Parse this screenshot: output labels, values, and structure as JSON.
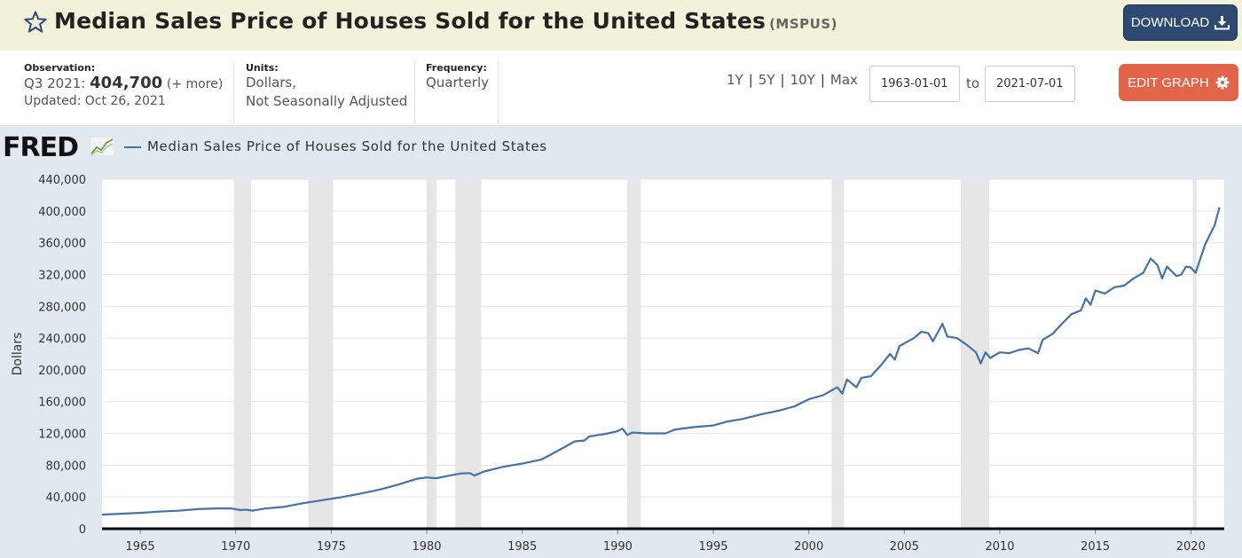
{
  "header": {
    "title": "Median Sales Price of Houses Sold for the United States",
    "code": "(MSPUS)",
    "download_label": "DOWNLOAD"
  },
  "meta": {
    "observation_label": "Observation:",
    "observation_period": "Q3 2021:",
    "observation_value": "404,700",
    "observation_more": "(+ more)",
    "updated": "Updated: Oct 26, 2021",
    "units_label": "Units:",
    "units_line1": "Dollars,",
    "units_line2": "Not Seasonally Adjusted",
    "frequency_label": "Frequency:",
    "frequency_value": "Quarterly"
  },
  "controls": {
    "ranges": [
      "1Y",
      "5Y",
      "10Y",
      "Max"
    ],
    "start_date": "1963-01-01",
    "to_label": "to",
    "end_date": "2021-07-01",
    "edit_label": "EDIT GRAPH"
  },
  "colors": {
    "series": "#4572a7",
    "recession": "#e6e6e6",
    "edit_button": "#e2654a",
    "download_button": "#2f4a72"
  },
  "logo": "FRED",
  "chart_data": {
    "type": "line",
    "title": "Median Sales Price of Houses Sold for the United States",
    "ylabel": "Dollars",
    "xlabel": "",
    "legend": [
      "Median Sales Price of Houses Sold for the United States"
    ],
    "ylim": [
      0,
      440000
    ],
    "xlim": [
      1963.0,
      2021.75
    ],
    "yticks": [
      0,
      40000,
      80000,
      120000,
      160000,
      200000,
      240000,
      280000,
      320000,
      360000,
      400000,
      440000
    ],
    "ytick_labels": [
      "0",
      "40,000",
      "80,000",
      "120,000",
      "160,000",
      "200,000",
      "240,000",
      "280,000",
      "320,000",
      "360,000",
      "400,000",
      "440,000"
    ],
    "xticks": [
      1965,
      1970,
      1975,
      1980,
      1985,
      1990,
      1995,
      2000,
      2005,
      2010,
      2015,
      2020
    ],
    "xtick_labels": [
      "1965",
      "1970",
      "1975",
      "1980",
      "1985",
      "1990",
      "1995",
      "2000",
      "2005",
      "2010",
      "2015",
      "2020"
    ],
    "recessions": [
      [
        1969.9,
        1970.8
      ],
      [
        1973.8,
        1975.1
      ],
      [
        1980.0,
        1980.5
      ],
      [
        1981.5,
        1982.85
      ],
      [
        1990.5,
        1991.2
      ],
      [
        2001.2,
        2001.85
      ],
      [
        2007.95,
        2009.45
      ],
      [
        2020.1,
        2020.3
      ]
    ],
    "series": [
      {
        "name": "Median Sales Price of Houses Sold for the United States",
        "points": [
          [
            1963.0,
            17800
          ],
          [
            1964.0,
            18900
          ],
          [
            1965.0,
            20000
          ],
          [
            1966.0,
            21500
          ],
          [
            1967.0,
            22700
          ],
          [
            1968.0,
            24700
          ],
          [
            1969.0,
            25600
          ],
          [
            1969.75,
            25600
          ],
          [
            1970.25,
            23500
          ],
          [
            1970.5,
            24000
          ],
          [
            1970.9,
            22800
          ],
          [
            1971.5,
            25300
          ],
          [
            1972.5,
            27500
          ],
          [
            1973.5,
            32000
          ],
          [
            1974.5,
            35800
          ],
          [
            1975.5,
            39500
          ],
          [
            1976.5,
            44000
          ],
          [
            1977.5,
            49000
          ],
          [
            1978.5,
            55500
          ],
          [
            1979.5,
            63000
          ],
          [
            1980.0,
            64500
          ],
          [
            1980.5,
            63500
          ],
          [
            1981.0,
            66000
          ],
          [
            1981.75,
            69500
          ],
          [
            1982.25,
            70000
          ],
          [
            1982.5,
            67000
          ],
          [
            1983.0,
            72000
          ],
          [
            1984.0,
            78000
          ],
          [
            1985.0,
            82000
          ],
          [
            1986.0,
            87000
          ],
          [
            1987.0,
            100000
          ],
          [
            1987.75,
            110000
          ],
          [
            1988.25,
            111000
          ],
          [
            1988.5,
            116000
          ],
          [
            1989.5,
            120000
          ],
          [
            1990.0,
            123000
          ],
          [
            1990.25,
            126000
          ],
          [
            1990.5,
            118000
          ],
          [
            1990.75,
            121000
          ],
          [
            1991.5,
            120000
          ],
          [
            1992.5,
            120000
          ],
          [
            1993.0,
            125000
          ],
          [
            1994.0,
            128000
          ],
          [
            1995.0,
            130000
          ],
          [
            1995.75,
            135000
          ],
          [
            1996.5,
            138000
          ],
          [
            1997.5,
            144000
          ],
          [
            1998.5,
            149000
          ],
          [
            1999.25,
            154000
          ],
          [
            2000.0,
            163000
          ],
          [
            2000.75,
            168000
          ],
          [
            2001.25,
            175000
          ],
          [
            2001.5,
            178000
          ],
          [
            2001.75,
            170000
          ],
          [
            2002.0,
            188000
          ],
          [
            2002.5,
            178000
          ],
          [
            2002.75,
            190000
          ],
          [
            2003.25,
            192000
          ],
          [
            2003.75,
            205000
          ],
          [
            2004.25,
            220000
          ],
          [
            2004.5,
            213000
          ],
          [
            2004.75,
            230000
          ],
          [
            2005.5,
            240000
          ],
          [
            2005.9,
            248000
          ],
          [
            2006.25,
            246000
          ],
          [
            2006.5,
            236000
          ],
          [
            2007.0,
            258000
          ],
          [
            2007.25,
            242000
          ],
          [
            2007.75,
            240000
          ],
          [
            2008.25,
            232000
          ],
          [
            2008.75,
            222000
          ],
          [
            2009.0,
            208000
          ],
          [
            2009.25,
            222000
          ],
          [
            2009.5,
            215000
          ],
          [
            2010.0,
            222000
          ],
          [
            2010.5,
            221000
          ],
          [
            2011.0,
            225000
          ],
          [
            2011.5,
            227000
          ],
          [
            2012.0,
            221000
          ],
          [
            2012.25,
            238000
          ],
          [
            2012.75,
            245000
          ],
          [
            2013.25,
            258000
          ],
          [
            2013.75,
            270000
          ],
          [
            2014.25,
            275000
          ],
          [
            2014.5,
            290000
          ],
          [
            2014.75,
            282000
          ],
          [
            2015.0,
            300000
          ],
          [
            2015.5,
            296000
          ],
          [
            2016.0,
            304000
          ],
          [
            2016.5,
            306000
          ],
          [
            2017.0,
            315000
          ],
          [
            2017.5,
            322000
          ],
          [
            2017.9,
            340000
          ],
          [
            2018.25,
            332000
          ],
          [
            2018.5,
            315000
          ],
          [
            2018.75,
            330000
          ],
          [
            2019.25,
            318000
          ],
          [
            2019.5,
            320000
          ],
          [
            2019.75,
            330000
          ],
          [
            2020.0,
            329000
          ],
          [
            2020.25,
            322000
          ],
          [
            2020.75,
            358000
          ],
          [
            2021.25,
            382000
          ],
          [
            2021.5,
            404700
          ]
        ]
      }
    ]
  }
}
